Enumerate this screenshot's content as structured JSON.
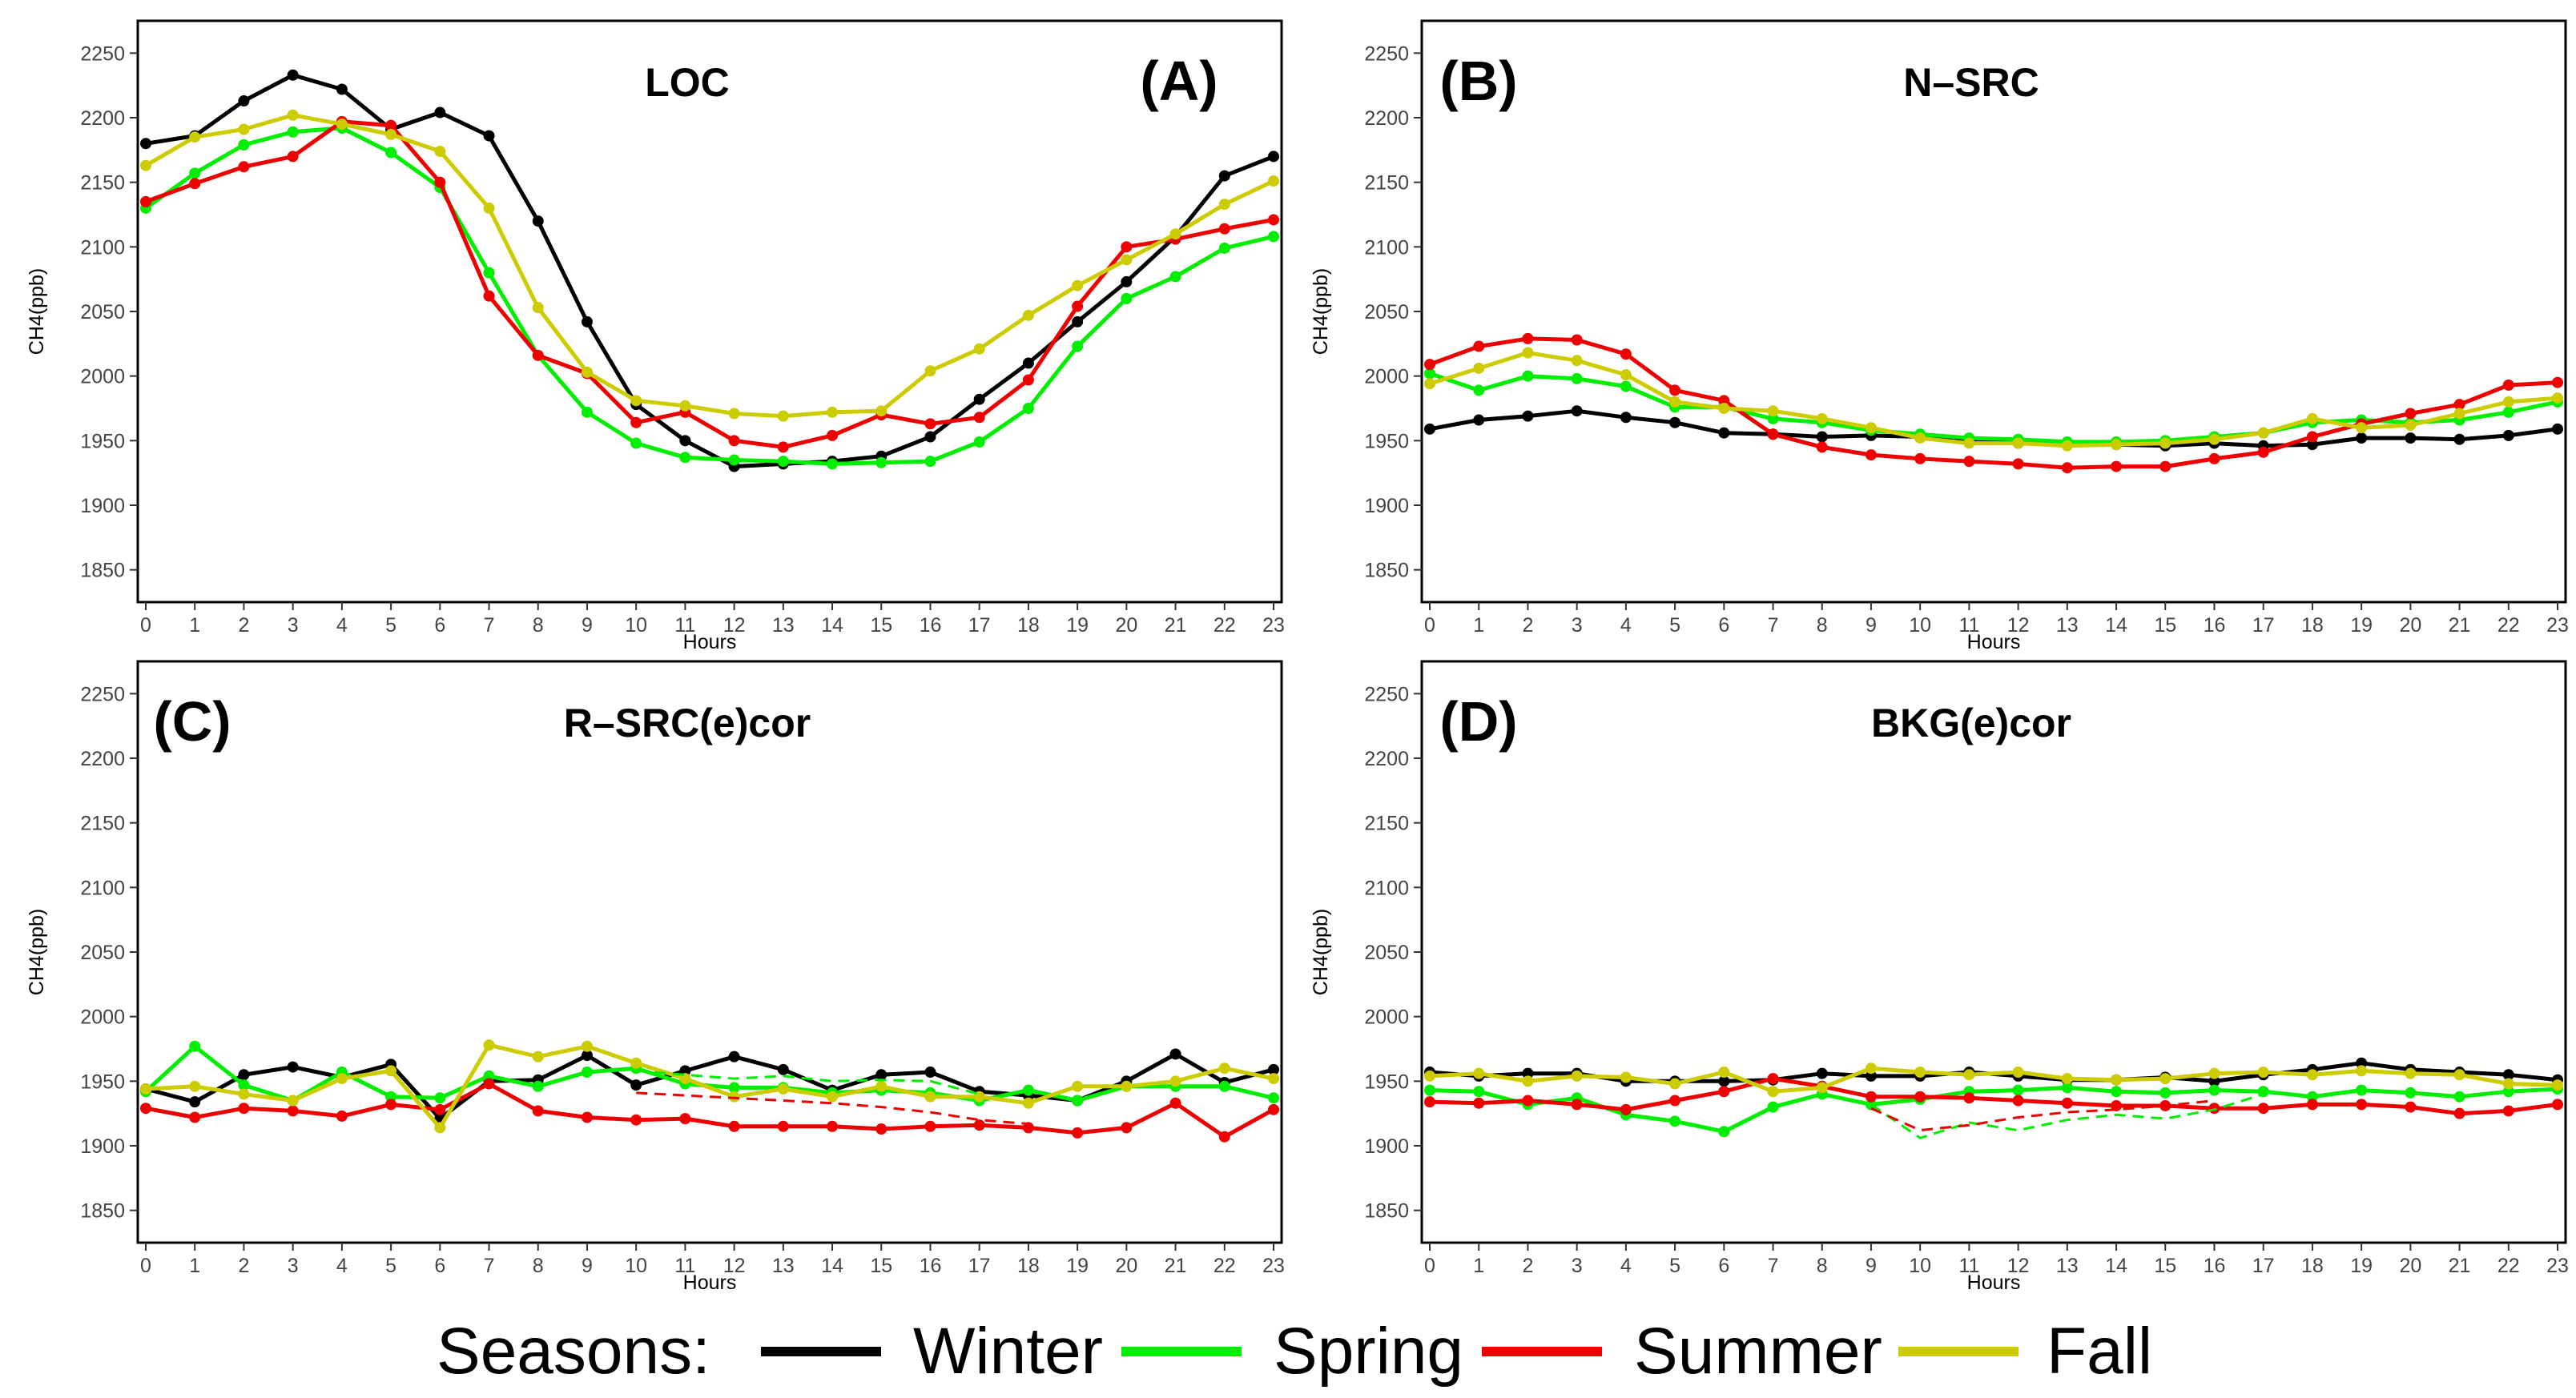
{
  "legend": {
    "title": "Seasons:",
    "items": [
      {
        "label": "Winter",
        "color": "#000000"
      },
      {
        "label": "Spring",
        "color": "#00ee00"
      },
      {
        "label": "Summer",
        "color": "#ee0000"
      },
      {
        "label": "Fall",
        "color": "#cccc00"
      }
    ]
  },
  "chart_data": [
    {
      "type": "line",
      "panel": "(A)",
      "title": "LOC",
      "xlabel": "Hours",
      "ylabel": "CH4(ppb)",
      "ylim": [
        1825,
        2275
      ],
      "yticks": [
        1850,
        1900,
        1950,
        2000,
        2050,
        2100,
        2150,
        2200,
        2250
      ],
      "x": [
        0,
        1,
        2,
        3,
        4,
        5,
        6,
        7,
        8,
        9,
        10,
        11,
        12,
        13,
        14,
        15,
        16,
        17,
        18,
        19,
        20,
        21,
        22,
        23
      ],
      "series": [
        {
          "name": "Winter",
          "color": "#000000",
          "style": "solid",
          "values": [
            2180,
            2186,
            2213,
            2233,
            2222,
            2191,
            2204,
            2186,
            2120,
            2042,
            1978,
            1950,
            1930,
            1932,
            1934,
            1938,
            1953,
            1982,
            2010,
            2042,
            2073,
            2108,
            2155,
            2170
          ]
        },
        {
          "name": "Spring",
          "color": "#00ee00",
          "style": "solid",
          "values": [
            2130,
            2157,
            2179,
            2189,
            2192,
            2173,
            2146,
            2080,
            2016,
            1972,
            1948,
            1937,
            1935,
            1934,
            1932,
            1933,
            1934,
            1949,
            1975,
            2023,
            2060,
            2077,
            2099,
            2108
          ]
        },
        {
          "name": "Summer",
          "color": "#ee0000",
          "style": "solid",
          "values": [
            2135,
            2149,
            2162,
            2170,
            2197,
            2194,
            2150,
            2062,
            2016,
            2002,
            1964,
            1972,
            1950,
            1945,
            1954,
            1970,
            1963,
            1968,
            1997,
            2054,
            2100,
            2106,
            2114,
            2121
          ]
        },
        {
          "name": "Fall",
          "color": "#cccc00",
          "style": "solid",
          "values": [
            2163,
            2185,
            2191,
            2202,
            2195,
            2187,
            2174,
            2130,
            2053,
            2003,
            1981,
            1977,
            1971,
            1969,
            1972,
            1973,
            2004,
            2021,
            2047,
            2070,
            2090,
            2110,
            2133,
            2151
          ]
        }
      ]
    },
    {
      "type": "line",
      "panel": "(B)",
      "title": "N–SRC",
      "xlabel": "Hours",
      "ylabel": "CH4(ppb)",
      "ylim": [
        1825,
        2275
      ],
      "yticks": [
        1850,
        1900,
        1950,
        2000,
        2050,
        2100,
        2150,
        2200,
        2250
      ],
      "x": [
        0,
        1,
        2,
        3,
        4,
        5,
        6,
        7,
        8,
        9,
        10,
        11,
        12,
        13,
        14,
        15,
        16,
        17,
        18,
        19,
        20,
        21,
        22,
        23
      ],
      "series": [
        {
          "name": "Winter",
          "color": "#000000",
          "style": "solid",
          "values": [
            1959,
            1966,
            1969,
            1973,
            1968,
            1964,
            1956,
            1955,
            1953,
            1954,
            1953,
            1950,
            1948,
            1947,
            1947,
            1946,
            1948,
            1946,
            1947,
            1952,
            1952,
            1951,
            1954,
            1959
          ]
        },
        {
          "name": "Spring",
          "color": "#00ee00",
          "style": "solid",
          "values": [
            2002,
            1989,
            2000,
            1998,
            1992,
            1976,
            1976,
            1967,
            1964,
            1958,
            1955,
            1952,
            1951,
            1949,
            1949,
            1950,
            1953,
            1956,
            1964,
            1966,
            1964,
            1966,
            1972,
            1980
          ]
        },
        {
          "name": "Summer",
          "color": "#ee0000",
          "style": "solid",
          "values": [
            2009,
            2023,
            2029,
            2028,
            2017,
            1989,
            1981,
            1955,
            1945,
            1939,
            1936,
            1934,
            1932,
            1929,
            1930,
            1930,
            1936,
            1941,
            1953,
            1963,
            1971,
            1978,
            1993,
            1995
          ]
        },
        {
          "name": "Fall",
          "color": "#cccc00",
          "style": "solid",
          "values": [
            1994,
            2006,
            2018,
            2012,
            2001,
            1980,
            1975,
            1973,
            1967,
            1960,
            1952,
            1948,
            1948,
            1946,
            1947,
            1948,
            1951,
            1956,
            1967,
            1960,
            1962,
            1971,
            1980,
            1983
          ]
        }
      ]
    },
    {
      "type": "line",
      "panel": "(C)",
      "title": "R–SRC(e)cor",
      "xlabel": "Hours",
      "ylabel": "CH4(ppb)",
      "ylim": [
        1825,
        2275
      ],
      "yticks": [
        1850,
        1900,
        1950,
        2000,
        2050,
        2100,
        2150,
        2200,
        2250
      ],
      "x": [
        0,
        1,
        2,
        3,
        4,
        5,
        6,
        7,
        8,
        9,
        10,
        11,
        12,
        13,
        14,
        15,
        16,
        17,
        18,
        19,
        20,
        21,
        22,
        23
      ],
      "series": [
        {
          "name": "Winter",
          "color": "#000000",
          "style": "solid",
          "values": [
            1944,
            1934,
            1955,
            1961,
            1953,
            1963,
            1921,
            1950,
            1951,
            1970,
            1947,
            1958,
            1969,
            1959,
            1943,
            1955,
            1957,
            1942,
            1939,
            1935,
            1950,
            1971,
            1949,
            1959
          ]
        },
        {
          "name": "Spring",
          "color": "#00ee00",
          "style": "solid",
          "values": [
            1942,
            1977,
            1947,
            1935,
            1957,
            1938,
            1937,
            1954,
            1946,
            1957,
            1960,
            1948,
            1945,
            1945,
            1941,
            1943,
            1941,
            1935,
            1943,
            1935,
            1946,
            1946,
            1946,
            1937
          ]
        },
        {
          "name": "Summer",
          "color": "#ee0000",
          "style": "solid",
          "values": [
            1929,
            1922,
            1929,
            1927,
            1923,
            1932,
            1928,
            1948,
            1927,
            1922,
            1920,
            1921,
            1915,
            1915,
            1915,
            1913,
            1915,
            1916,
            1914,
            1910,
            1914,
            1933,
            1907,
            1928
          ]
        },
        {
          "name": "Fall",
          "color": "#cccc00",
          "style": "solid",
          "values": [
            1944,
            1946,
            1940,
            1935,
            1952,
            1958,
            1914,
            1978,
            1969,
            1977,
            1964,
            1952,
            1938,
            1944,
            1938,
            1946,
            1938,
            1938,
            1933,
            1946,
            1946,
            1950,
            1960,
            1952
          ]
        },
        {
          "name": "Spring (dashed)",
          "color": "#00ee00",
          "style": "dashed",
          "x": [
            10,
            11,
            12,
            13,
            14,
            15,
            16,
            17
          ],
          "values": [
            1958,
            1955,
            1952,
            1954,
            1950,
            1951,
            1950,
            1940
          ]
        },
        {
          "name": "Summer (dashed)",
          "color": "#ee0000",
          "style": "dashed",
          "x": [
            10,
            11,
            12,
            13,
            14,
            15,
            16,
            17,
            18
          ],
          "values": [
            1941,
            1939,
            1937,
            1935,
            1933,
            1930,
            1926,
            1920,
            1917
          ]
        }
      ]
    },
    {
      "type": "line",
      "panel": "(D)",
      "title": "BKG(e)cor",
      "xlabel": "Hours",
      "ylabel": "CH4(ppb)",
      "ylim": [
        1825,
        2275
      ],
      "yticks": [
        1850,
        1900,
        1950,
        2000,
        2050,
        2100,
        2150,
        2200,
        2250
      ],
      "x": [
        0,
        1,
        2,
        3,
        4,
        5,
        6,
        7,
        8,
        9,
        10,
        11,
        12,
        13,
        14,
        15,
        16,
        17,
        18,
        19,
        20,
        21,
        22,
        23
      ],
      "series": [
        {
          "name": "Winter",
          "color": "#000000",
          "style": "solid",
          "values": [
            1957,
            1954,
            1956,
            1956,
            1950,
            1950,
            1950,
            1951,
            1956,
            1954,
            1954,
            1957,
            1954,
            1951,
            1951,
            1953,
            1950,
            1955,
            1959,
            1964,
            1959,
            1957,
            1955,
            1951
          ]
        },
        {
          "name": "Spring",
          "color": "#00ee00",
          "style": "solid",
          "values": [
            1943,
            1942,
            1932,
            1937,
            1924,
            1919,
            1911,
            1930,
            1940,
            1932,
            1936,
            1942,
            1943,
            1945,
            1942,
            1941,
            1943,
            1942,
            1938,
            1943,
            1941,
            1938,
            1942,
            1944
          ]
        },
        {
          "name": "Summer",
          "color": "#ee0000",
          "style": "solid",
          "values": [
            1934,
            1933,
            1935,
            1932,
            1928,
            1935,
            1942,
            1952,
            1946,
            1938,
            1938,
            1937,
            1935,
            1933,
            1931,
            1931,
            1929,
            1929,
            1932,
            1932,
            1930,
            1925,
            1927,
            1932
          ]
        },
        {
          "name": "Fall",
          "color": "#cccc00",
          "style": "solid",
          "values": [
            1954,
            1956,
            1950,
            1954,
            1953,
            1948,
            1957,
            1942,
            1945,
            1960,
            1957,
            1955,
            1957,
            1952,
            1951,
            1952,
            1956,
            1957,
            1955,
            1958,
            1956,
            1955,
            1948,
            1947
          ]
        },
        {
          "name": "Spring (dashed)",
          "color": "#00ee00",
          "style": "dashed",
          "x": [
            9,
            10,
            11,
            12,
            13,
            14,
            15,
            16,
            17
          ],
          "values": [
            1932,
            1906,
            1918,
            1912,
            1920,
            1924,
            1921,
            1928,
            1940
          ]
        },
        {
          "name": "Summer (dashed)",
          "color": "#ee0000",
          "style": "dashed",
          "x": [
            9,
            10,
            11,
            12,
            13,
            14,
            15,
            16
          ],
          "values": [
            1929,
            1912,
            1916,
            1922,
            1926,
            1928,
            1931,
            1935
          ]
        }
      ]
    }
  ]
}
